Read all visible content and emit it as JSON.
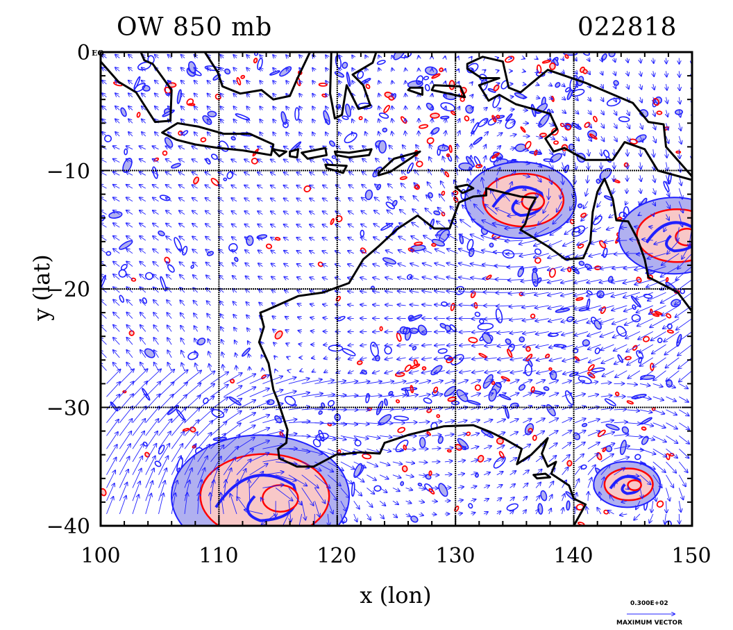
{
  "title_left": "OW 850 mb",
  "title_right": "022818",
  "eq_label": "EQ",
  "xlabel": "x (lon)",
  "ylabel": "y (lat)",
  "x_ticks": [
    "100",
    "110",
    "120",
    "130",
    "140",
    "150"
  ],
  "y_ticks": [
    "0",
    "−10",
    "−20",
    "−30",
    "−40"
  ],
  "legend": {
    "value": "0.300E+02",
    "label": "MAXIMUM VECTOR"
  },
  "colors": {
    "positive_contour": "#ff0000",
    "positive_fill": "#f8c8c8",
    "negative_contour": "#2020ff",
    "negative_fill": "#b0b0f0",
    "vectors": "#2020ff",
    "coast": "#000000"
  },
  "chart_data": {
    "type": "map",
    "title": "OW 850 mb",
    "subtitle": "022818",
    "xlabel": "x (lon)",
    "ylabel": "y (lat)",
    "xlim": [
      100,
      150
    ],
    "ylim": [
      -40,
      0
    ],
    "grid": true,
    "grid_lon": [
      110,
      120,
      130,
      140
    ],
    "grid_lat": [
      -10,
      -20,
      -30
    ],
    "features": [
      {
        "kind": "cyclone",
        "lon": 113.5,
        "lat": -37.5,
        "strength": "strong"
      },
      {
        "kind": "cyclone",
        "lon": 135.5,
        "lat": -12.5,
        "strength": "moderate"
      },
      {
        "kind": "cyclone",
        "lon": 148.5,
        "lat": -15.5,
        "strength": "moderate"
      },
      {
        "kind": "cyclone",
        "lon": 144.5,
        "lat": -36.5,
        "strength": "weak"
      }
    ]
  }
}
